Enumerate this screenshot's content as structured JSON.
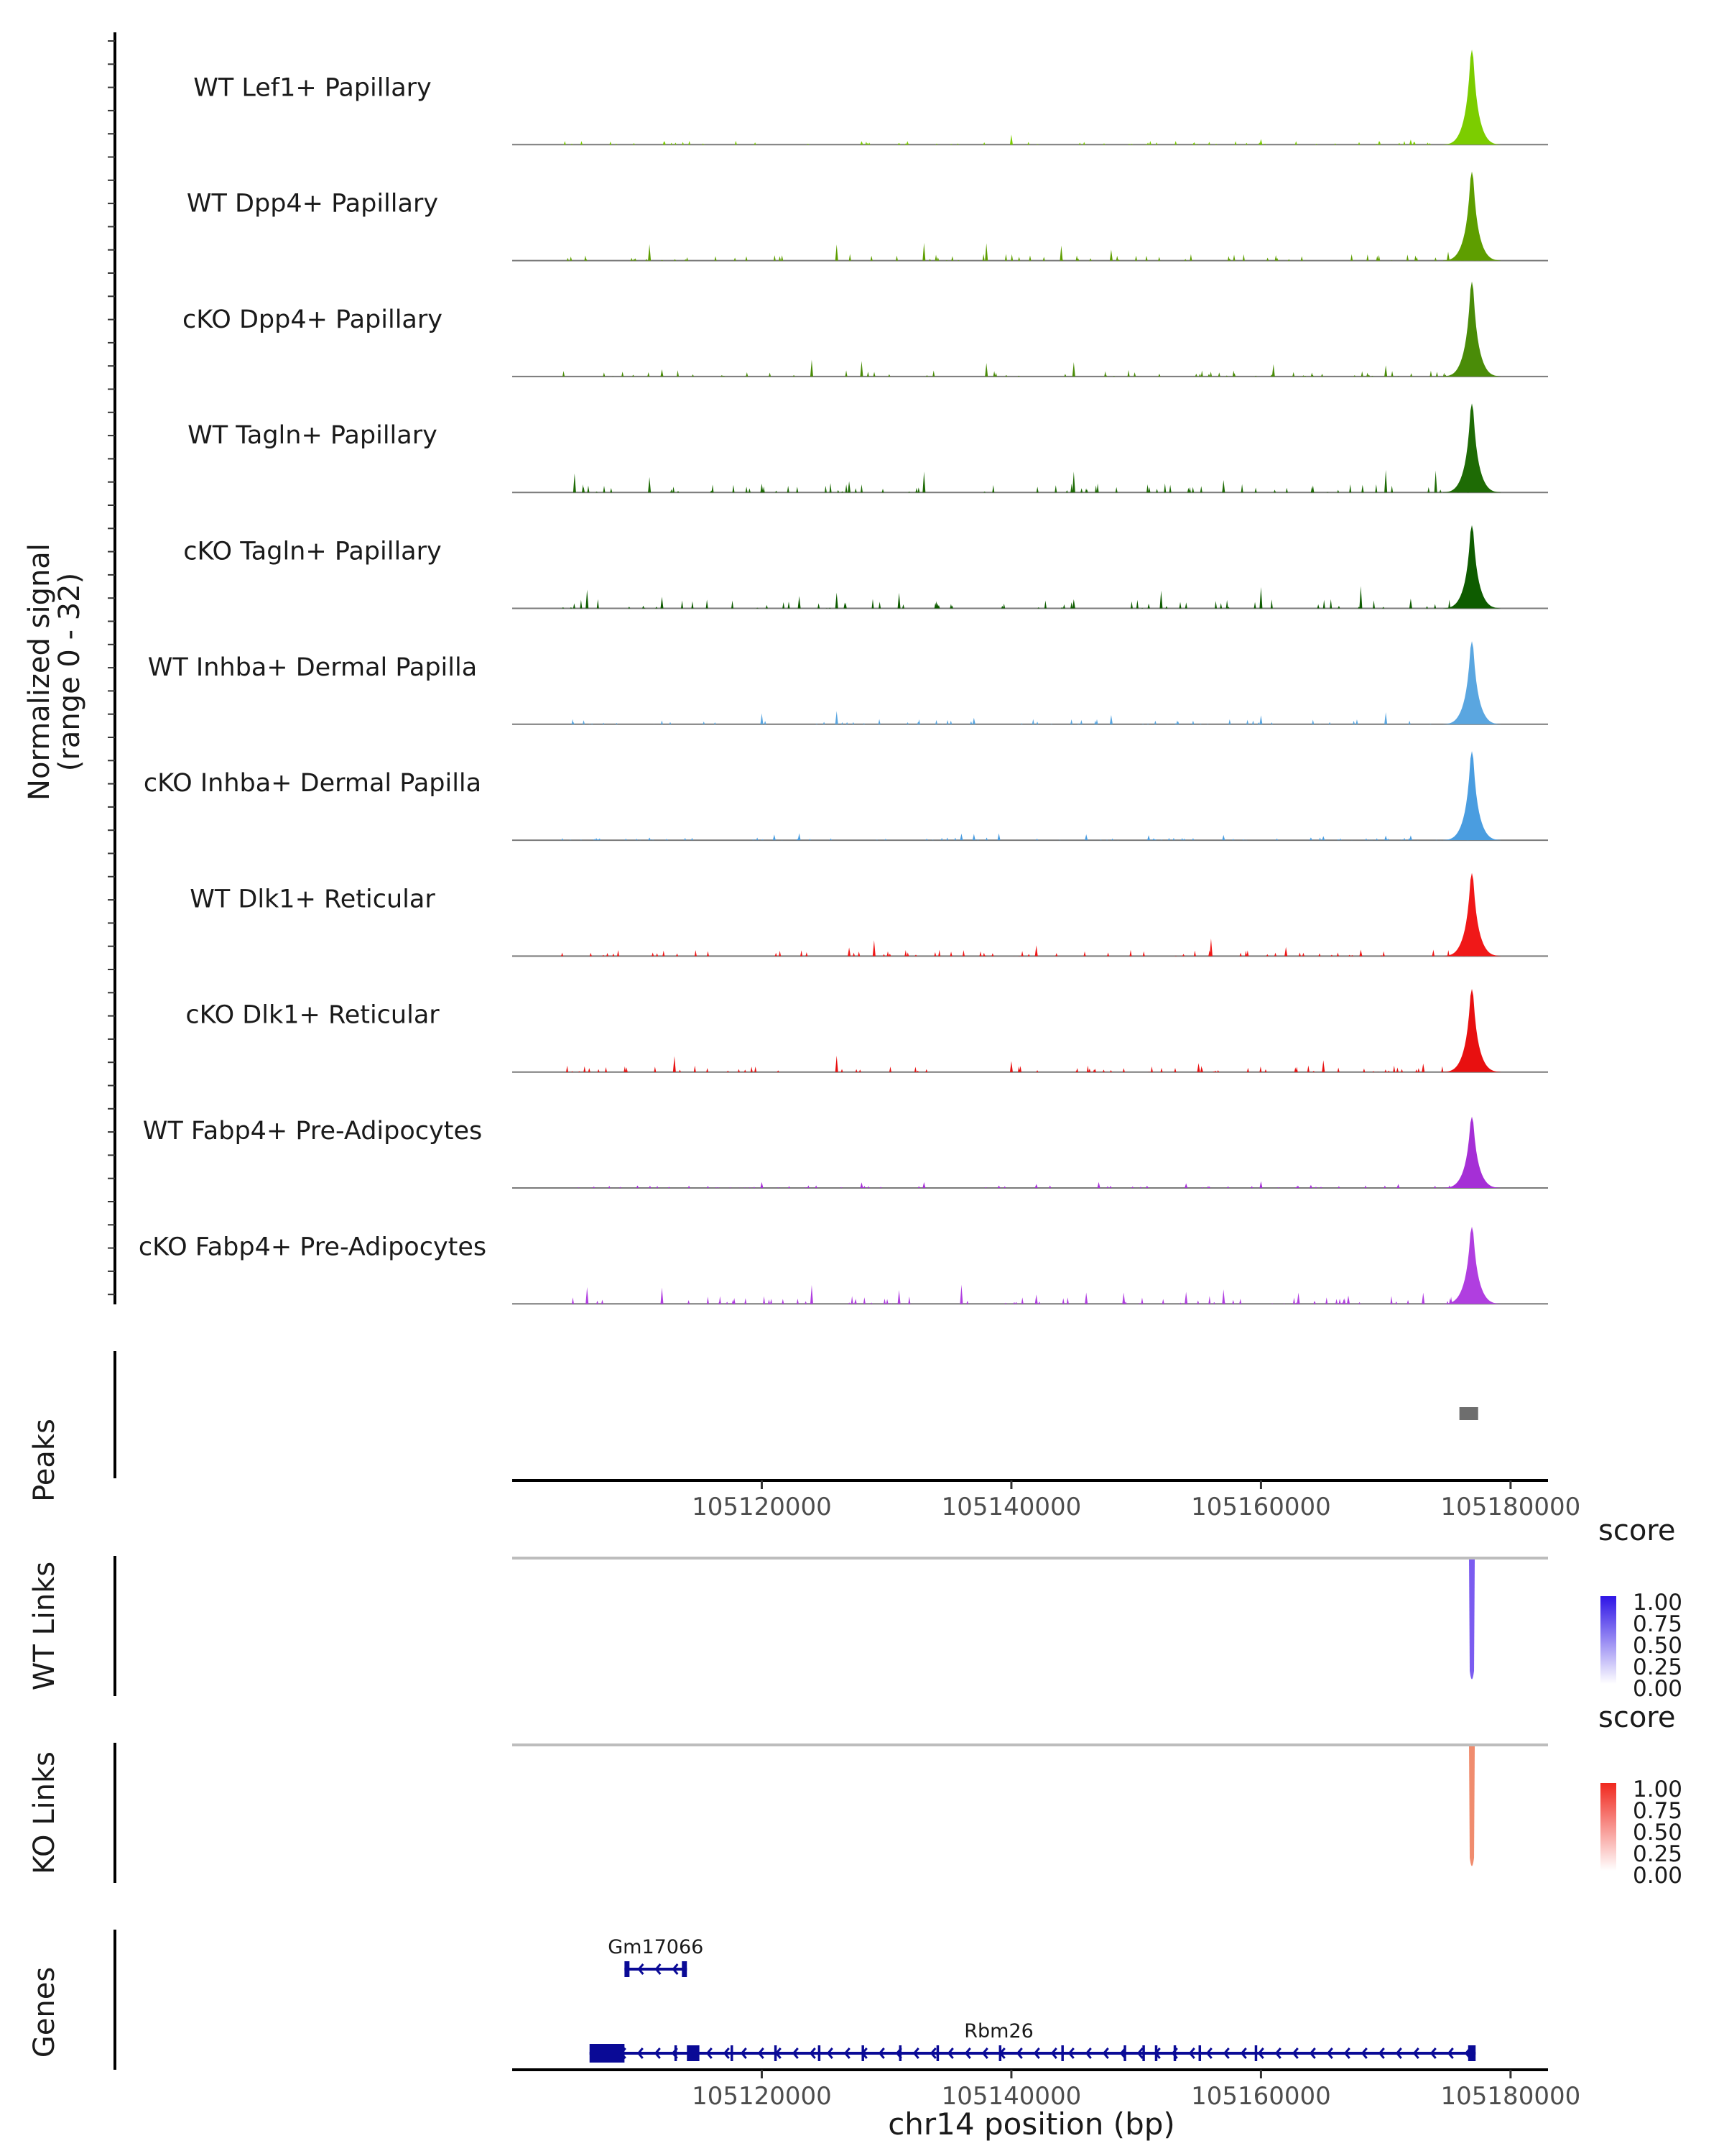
{
  "chart_data": {
    "type": "area",
    "title": "",
    "chromosome": "chr14",
    "xrange": [
      105100000,
      105183000
    ],
    "coverage": {
      "ylabel": "Normalized signal",
      "ylabel2": "(range 0 - 32)",
      "ylim": [
        0,
        32
      ],
      "tracks": [
        {
          "name": "WT Lef1+ Papillary",
          "color": "#7CCD00",
          "peak": 32,
          "noise": 1.5,
          "small": [
            105128000,
            105140000,
            105160000,
            105172000
          ]
        },
        {
          "name": "WT Dpp4+ Papillary",
          "color": "#5E9E00",
          "peak": 30,
          "noise": 2.5,
          "small": [
            105111000,
            105126000,
            105133000,
            105138000,
            105144000,
            105148000,
            105175000
          ]
        },
        {
          "name": "cKO Dpp4+ Papillary",
          "color": "#4A8C08",
          "peak": 32,
          "noise": 2.5,
          "small": [
            105112000,
            105124000,
            105128000,
            105138000,
            105145000,
            105161000,
            105170000
          ]
        },
        {
          "name": "WT Tagln+ Papillary",
          "color": "#1E6B05",
          "peak": 30,
          "noise": 3.5,
          "small": [
            105105000,
            105111000,
            105120000,
            105127000,
            105133000,
            105145000,
            105157000,
            105170000,
            105174000
          ]
        },
        {
          "name": "cKO Tagln+ Papillary",
          "color": "#0E5C00",
          "peak": 28,
          "noise": 3.5,
          "small": [
            105106000,
            105112000,
            105123000,
            105126000,
            105131000,
            105145000,
            105152000,
            105160000,
            105168000,
            105172000
          ]
        },
        {
          "name": "WT Inhba+ Dermal Papilla",
          "color": "#5AA6E0",
          "peak": 28,
          "noise": 2.0,
          "small": [
            105120000,
            105126000,
            105137000,
            105148000,
            105160000,
            105170000
          ]
        },
        {
          "name": "cKO Inhba+ Dermal Papilla",
          "color": "#4A9DE0",
          "peak": 30,
          "noise": 1.0,
          "small": [
            105111000,
            105121000,
            105123000,
            105136000,
            105137000,
            105139000,
            105146000,
            105151000,
            105157000,
            105164000,
            105165000,
            105170000,
            105172000
          ]
        },
        {
          "name": "WT Dlk1+ Reticular",
          "color": "#F01818",
          "peak": 28,
          "noise": 2.5,
          "small": [
            105127000,
            105129000,
            105142000,
            105156000,
            105162000,
            105168000
          ]
        },
        {
          "name": "cKO Dlk1+ Reticular",
          "color": "#E81010",
          "peak": 28,
          "noise": 2.5,
          "small": [
            105113000,
            105126000,
            105140000,
            105155000,
            105165000,
            105173000
          ]
        },
        {
          "name": "WT Fabp4+ Pre-Adipocytes",
          "color": "#A52FD6",
          "peak": 24,
          "noise": 1.0,
          "small": [
            105120000,
            105128000,
            105133000,
            105139000,
            105142000,
            105147000,
            105154000,
            105160000,
            105164000,
            105171000
          ]
        },
        {
          "name": "cKO Fabp4+ Pre-Adipocytes",
          "color": "#B03EE0",
          "peak": 26,
          "noise": 3.0,
          "small": [
            105106000,
            105112000,
            105124000,
            105131000,
            105136000,
            105142000,
            105146000,
            105149000,
            105154000,
            105157000,
            105163000,
            105167000,
            105173000
          ]
        }
      ]
    },
    "peaks": {
      "label": "Peaks",
      "regions": [
        [
          105175900,
          105177400
        ]
      ],
      "color": "#6E6E6E"
    },
    "xaxis": {
      "ticks": [
        105120000,
        105140000,
        105160000,
        105180000
      ],
      "tick_labels": [
        "105120000",
        "105140000",
        "105160000",
        "105180000"
      ],
      "xlabel": "chr14 position (bp)"
    },
    "links": [
      {
        "label": "WT Links",
        "legend_title": "score",
        "legend_ticks": [
          "1.00",
          "0.75",
          "0.50",
          "0.25",
          "0.00"
        ],
        "color_high": "#2E14E6",
        "color_mid": "#7B5CF0",
        "position": 105176900,
        "score": 0.8
      },
      {
        "label": "KO Links",
        "legend_title": "score",
        "legend_ticks": [
          "1.00",
          "0.75",
          "0.50",
          "0.25",
          "0.00"
        ],
        "color_high": "#F0281E",
        "color_mid": "#F08C6E",
        "position": 105176900,
        "score": 0.6
      }
    ],
    "genes": {
      "label": "Genes",
      "color": "#0A0A96",
      "items": [
        {
          "name": "Gm17066",
          "start": 105109000,
          "end": 105114000,
          "row": 0,
          "strand": "-",
          "exons": [
            [
              105109000,
              105109400
            ],
            [
              105113600,
              105114000
            ]
          ]
        },
        {
          "name": "Rbm26",
          "start": 105106200,
          "end": 105177200,
          "row": 1,
          "strand": "-",
          "exons": [
            [
              105106200,
              105109000
            ],
            [
              105114000,
              105115000
            ],
            [
              105113000,
              105113200
            ],
            [
              105117500,
              105117700
            ],
            [
              105121000,
              105121200
            ],
            [
              105124500,
              105124700
            ],
            [
              105128000,
              105128200
            ],
            [
              105131000,
              105131200
            ],
            [
              105134000,
              105134200
            ],
            [
              105139000,
              105139200
            ],
            [
              105144000,
              105144200
            ],
            [
              105149000,
              105149200
            ],
            [
              105150500,
              105150700
            ],
            [
              105151500,
              105151700
            ],
            [
              105153000,
              105153200
            ],
            [
              105155000,
              105155200
            ],
            [
              105159500,
              105159700
            ],
            [
              105176600,
              105177200
            ]
          ]
        }
      ]
    }
  }
}
